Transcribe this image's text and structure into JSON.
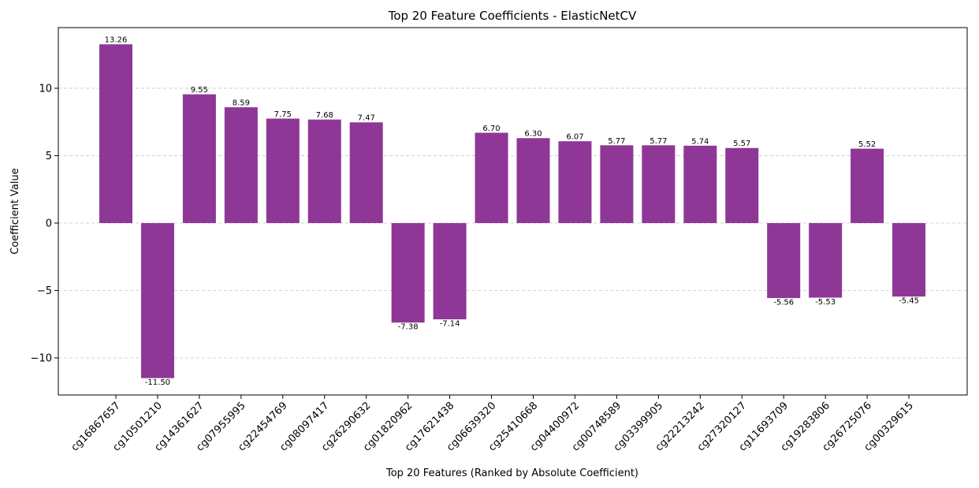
{
  "chart_data": {
    "type": "bar",
    "title": "Top 20 Feature Coefficients - ElasticNetCV",
    "xlabel": "Top 20 Features (Ranked by Absolute Coefficient)",
    "ylabel": "Coefficient Value",
    "categories": [
      "cg16867657",
      "cg10501210",
      "cg14361627",
      "cg07955995",
      "cg22454769",
      "cg08097417",
      "cg26290632",
      "cg01820962",
      "cg17621438",
      "cg06639320",
      "cg25410668",
      "cg04400972",
      "cg00748589",
      "cg03399905",
      "cg22213242",
      "cg27320127",
      "cg11693709",
      "cg19283806",
      "cg26725076",
      "cg00329615"
    ],
    "values": [
      13.26,
      -11.5,
      9.55,
      8.59,
      7.75,
      7.68,
      7.47,
      -7.38,
      -7.14,
      6.7,
      6.3,
      6.07,
      5.77,
      5.77,
      5.74,
      5.57,
      -5.56,
      -5.53,
      5.52,
      -5.45
    ],
    "value_labels": [
      "13.26",
      "-11.50",
      "9.55",
      "8.59",
      "7.75",
      "7.68",
      "7.47",
      "-7.38",
      "-7.14",
      "6.70",
      "6.30",
      "6.07",
      "5.77",
      "5.77",
      "5.74",
      "5.57",
      "-5.56",
      "-5.53",
      "5.52",
      "-5.45"
    ],
    "ylim": [
      -12.75,
      14.5
    ],
    "yticks": [
      -10,
      -5,
      0,
      5,
      10
    ],
    "ytick_labels": [
      "−10",
      "−5",
      "0",
      "5",
      "10"
    ],
    "bar_color": "#8e3797",
    "grid": "y-axis dashed"
  }
}
